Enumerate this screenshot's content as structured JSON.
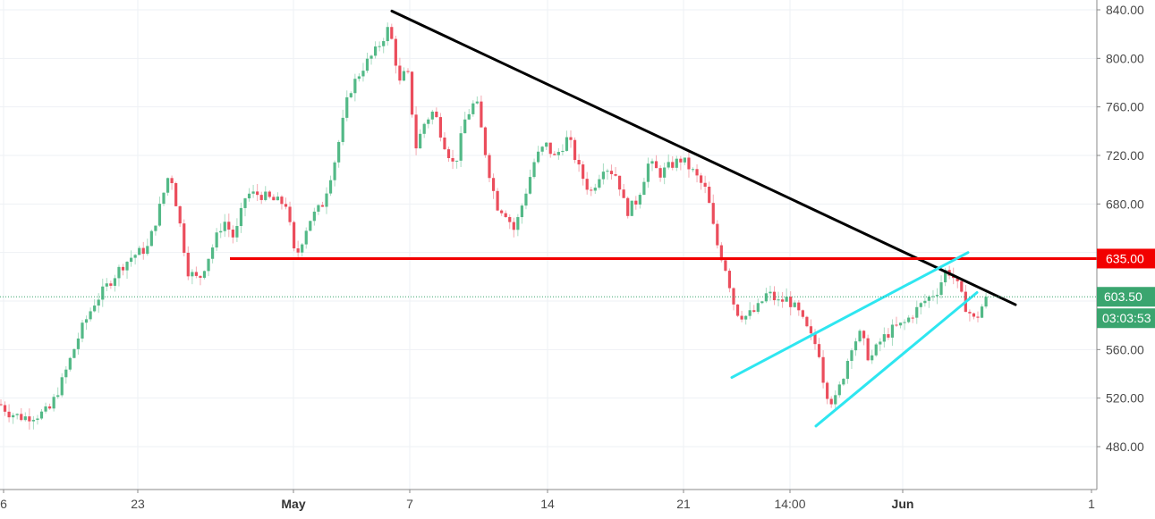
{
  "chart_data": {
    "type": "candlestick",
    "y_axis": {
      "ticks": [
        "840.00",
        "800.00",
        "760.00",
        "720.00",
        "680.00",
        "560.00",
        "520.00",
        "480.00"
      ],
      "tick_values": [
        840,
        800,
        760,
        720,
        680,
        560,
        520,
        480
      ],
      "range": [
        459,
        849
      ],
      "position": "right"
    },
    "x_axis": {
      "labels": [
        "6",
        "23",
        "May",
        "7",
        "14",
        "21",
        "14:00",
        "Jun",
        "1"
      ],
      "bold_labels": [
        "May",
        "Jun"
      ]
    },
    "grid": true,
    "price_tags": {
      "resistance": {
        "label": "635.00",
        "value": 635,
        "color": "#f20000"
      },
      "last_price": {
        "label": "603.50",
        "value": 603.5,
        "color": "#3aa56f"
      },
      "countdown": {
        "label": "03:03:53",
        "color": "#3aa56f"
      }
    },
    "drawings": [
      {
        "kind": "trendline",
        "color": "#000000",
        "from": [
          438,
          839
        ],
        "to": [
          1135,
          597
        ]
      },
      {
        "kind": "horizontal",
        "color": "#f20000",
        "value": 635,
        "from_x": 257
      },
      {
        "kind": "trendline",
        "color": "#2ee6f0",
        "from": [
          818,
          537
        ],
        "to": [
          1082,
          640
        ]
      },
      {
        "kind": "trendline",
        "color": "#2ee6f0",
        "from": [
          912,
          497
        ],
        "to": [
          1092,
          607
        ]
      }
    ],
    "price_waypoints": [
      [
        0,
        515
      ],
      [
        10,
        508
      ],
      [
        25,
        504
      ],
      [
        42,
        506
      ],
      [
        55,
        510
      ],
      [
        70,
        535
      ],
      [
        90,
        575
      ],
      [
        105,
        598
      ],
      [
        120,
        613
      ],
      [
        135,
        628
      ],
      [
        148,
        637
      ],
      [
        165,
        644
      ],
      [
        178,
        676
      ],
      [
        190,
        708
      ],
      [
        200,
        668
      ],
      [
        210,
        625
      ],
      [
        222,
        617
      ],
      [
        235,
        640
      ],
      [
        250,
        667
      ],
      [
        262,
        651
      ],
      [
        275,
        688
      ],
      [
        290,
        688
      ],
      [
        305,
        683
      ],
      [
        320,
        680
      ],
      [
        330,
        634
      ],
      [
        345,
        666
      ],
      [
        360,
        679
      ],
      [
        375,
        718
      ],
      [
        390,
        772
      ],
      [
        405,
        792
      ],
      [
        420,
        806
      ],
      [
        435,
        826
      ],
      [
        447,
        779
      ],
      [
        455,
        792
      ],
      [
        465,
        727
      ],
      [
        475,
        748
      ],
      [
        485,
        757
      ],
      [
        495,
        733
      ],
      [
        508,
        710
      ],
      [
        520,
        750
      ],
      [
        532,
        766
      ],
      [
        545,
        712
      ],
      [
        555,
        679
      ],
      [
        565,
        673
      ],
      [
        575,
        658
      ],
      [
        585,
        683
      ],
      [
        598,
        717
      ],
      [
        610,
        729
      ],
      [
        620,
        718
      ],
      [
        635,
        735
      ],
      [
        648,
        707
      ],
      [
        660,
        689
      ],
      [
        675,
        712
      ],
      [
        690,
        703
      ],
      [
        700,
        673
      ],
      [
        712,
        683
      ],
      [
        725,
        714
      ],
      [
        738,
        705
      ],
      [
        750,
        712
      ],
      [
        762,
        717
      ],
      [
        775,
        706
      ],
      [
        790,
        690
      ],
      [
        800,
        650
      ],
      [
        812,
        625
      ],
      [
        822,
        592
      ],
      [
        832,
        587
      ],
      [
        845,
        592
      ],
      [
        858,
        607
      ],
      [
        870,
        599
      ],
      [
        880,
        602
      ],
      [
        892,
        591
      ],
      [
        905,
        572
      ],
      [
        915,
        560
      ],
      [
        922,
        527
      ],
      [
        932,
        515
      ],
      [
        942,
        537
      ],
      [
        952,
        564
      ],
      [
        962,
        573
      ],
      [
        972,
        551
      ],
      [
        985,
        568
      ],
      [
        998,
        577
      ],
      [
        1010,
        581
      ],
      [
        1022,
        591
      ],
      [
        1035,
        601
      ],
      [
        1048,
        609
      ],
      [
        1058,
        627
      ],
      [
        1068,
        617
      ],
      [
        1078,
        597
      ],
      [
        1090,
        583
      ],
      [
        1097,
        595
      ],
      [
        1105,
        603.5
      ]
    ]
  }
}
